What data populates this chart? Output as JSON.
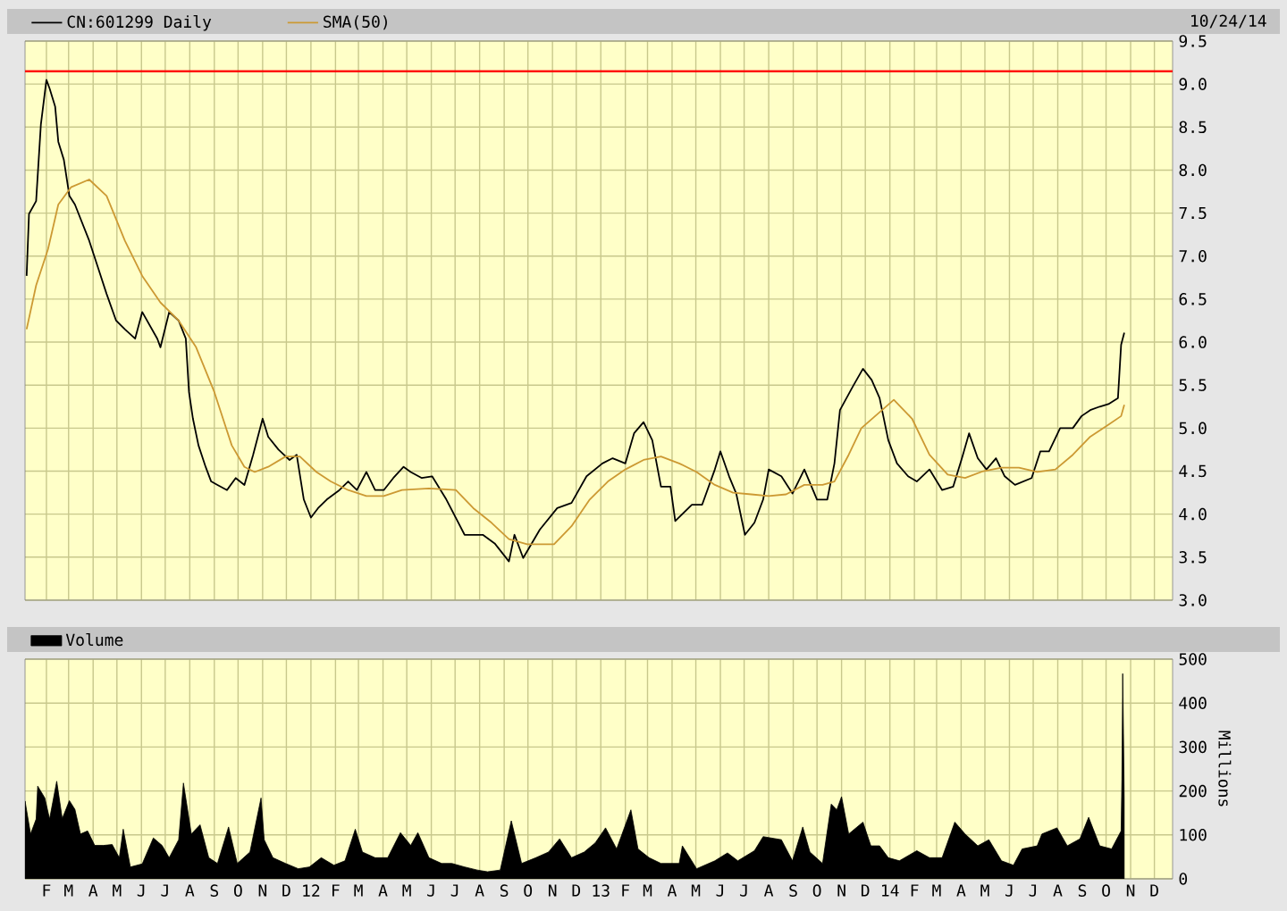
{
  "chart_data": [
    {
      "type": "line",
      "grid": true,
      "legend": "top left",
      "tick_labels": "y",
      "annotations": [
        "10/24/14"
      ],
      "xlim": [
        "2011-01-05",
        "2014-12-24"
      ],
      "xticks": [
        {
          "value": "2011-02-01",
          "label": null
        },
        {
          "value": "2011-03-01",
          "label": null
        },
        {
          "value": "2011-04-01",
          "label": null
        },
        {
          "value": "2011-05-01",
          "label": null
        },
        {
          "value": "2011-06-01",
          "label": null
        },
        {
          "value": "2011-07-01",
          "label": null
        },
        {
          "value": "2011-08-01",
          "label": null
        },
        {
          "value": "2011-09-01",
          "label": null
        },
        {
          "value": "2011-10-01",
          "label": null
        },
        {
          "value": "2011-11-01",
          "label": null
        },
        {
          "value": "2011-12-01",
          "label": null
        },
        {
          "value": "2012-01-01",
          "label": null
        },
        {
          "value": "2012-02-01",
          "label": null
        },
        {
          "value": "2012-03-01",
          "label": null
        },
        {
          "value": "2012-04-01",
          "label": null
        },
        {
          "value": "2012-05-01",
          "label": null
        },
        {
          "value": "2012-06-01",
          "label": null
        },
        {
          "value": "2012-07-01",
          "label": null
        },
        {
          "value": "2012-08-01",
          "label": null
        },
        {
          "value": "2012-09-01",
          "label": null
        },
        {
          "value": "2012-10-01",
          "label": null
        },
        {
          "value": "2012-11-01",
          "label": null
        },
        {
          "value": "2012-12-01",
          "label": null
        },
        {
          "value": "2013-01-01",
          "label": null
        },
        {
          "value": "2013-02-01",
          "label": null
        },
        {
          "value": "2013-03-01",
          "label": null
        },
        {
          "value": "2013-04-01",
          "label": null
        },
        {
          "value": "2013-05-01",
          "label": null
        },
        {
          "value": "2013-06-01",
          "label": null
        },
        {
          "value": "2013-07-01",
          "label": null
        },
        {
          "value": "2013-08-01",
          "label": null
        },
        {
          "value": "2013-09-01",
          "label": null
        },
        {
          "value": "2013-10-01",
          "label": null
        },
        {
          "value": "2013-11-01",
          "label": null
        },
        {
          "value": "2013-12-01",
          "label": null
        },
        {
          "value": "2014-01-01",
          "label": null
        },
        {
          "value": "2014-02-01",
          "label": null
        },
        {
          "value": "2014-03-01",
          "label": null
        },
        {
          "value": "2014-04-01",
          "label": null
        },
        {
          "value": "2014-05-01",
          "label": null
        },
        {
          "value": "2014-06-01",
          "label": null
        },
        {
          "value": "2014-07-01",
          "label": null
        },
        {
          "value": "2014-08-01",
          "label": null
        },
        {
          "value": "2014-09-01",
          "label": null
        },
        {
          "value": "2014-10-01",
          "label": null
        },
        {
          "value": "2014-11-01",
          "label": null
        },
        {
          "value": "2014-12-01",
          "label": null
        }
      ],
      "ylim": [
        3,
        9.5
      ],
      "yticks": [
        {
          "value": 3,
          "label": "3.0"
        },
        3.5,
        {
          "value": 4,
          "label": "4.0"
        },
        4.5,
        {
          "value": 5,
          "label": "5.0"
        },
        5.5,
        {
          "value": 6,
          "label": "6.0"
        },
        6.5,
        {
          "value": 7,
          "label": "7.0"
        },
        7.5,
        {
          "value": 8,
          "label": "8.0"
        },
        8.5,
        {
          "value": 9,
          "label": "9.0"
        },
        9.5
      ],
      "ref_lines": [
        {
          "axis": "y",
          "value": 9.15,
          "color": "#ff0000"
        }
      ],
      "series": [
        {
          "name": "CN:601299 Daily",
          "color": "#000000",
          "x": [
            "2011-01-07",
            "2011-01-10",
            "2011-01-19",
            "2011-01-25",
            "2011-02-01",
            "2011-02-05",
            "2011-02-12",
            "2011-02-16",
            "2011-02-23",
            "2011-03-02",
            "2011-03-09",
            "2011-03-18",
            "2011-03-27",
            "2011-04-07",
            "2011-04-18",
            "2011-04-30",
            "2011-05-11",
            "2011-05-24",
            "2011-06-02",
            "2011-06-21",
            "2011-06-25",
            "2011-07-06",
            "2011-07-18",
            "2011-07-27",
            "2011-07-31",
            "2011-08-05",
            "2011-08-12",
            "2011-08-21",
            "2011-08-28",
            "2011-09-05",
            "2011-09-17",
            "2011-09-28",
            "2011-10-09",
            "2011-10-20",
            "2011-11-01",
            "2011-11-08",
            "2011-11-21",
            "2011-12-05",
            "2011-12-14",
            "2011-12-23",
            "2012-01-01",
            "2012-01-10",
            "2012-01-21",
            "2012-02-06",
            "2012-02-17",
            "2012-02-28",
            "2012-03-11",
            "2012-03-22",
            "2012-04-02",
            "2012-04-14",
            "2012-04-27",
            "2012-05-06",
            "2012-05-20",
            "2012-06-02",
            "2012-06-20",
            "2012-07-13",
            "2012-08-05",
            "2012-08-20",
            "2012-09-07",
            "2012-09-14",
            "2012-09-25",
            "2012-10-16",
            "2012-11-07",
            "2012-11-25",
            "2012-12-14",
            "2013-01-03",
            "2013-01-16",
            "2013-02-01",
            "2013-02-12",
            "2013-02-24",
            "2013-03-07",
            "2013-03-18",
            "2013-03-30",
            "2013-04-05",
            "2013-04-26",
            "2013-05-09",
            "2013-05-25",
            "2013-06-01",
            "2013-06-12",
            "2013-06-21",
            "2013-07-02",
            "2013-07-14",
            "2013-07-25",
            "2013-08-01",
            "2013-08-17",
            "2013-08-31",
            "2013-09-15",
            "2013-10-01",
            "2013-10-14",
            "2013-10-23",
            "2013-10-30",
            "2013-11-15",
            "2013-11-28",
            "2013-12-09",
            "2013-12-19",
            "2013-12-30",
            "2014-01-10",
            "2014-01-24",
            "2014-02-04",
            "2014-02-20",
            "2014-03-08",
            "2014-03-22",
            "2014-04-02",
            "2014-04-11",
            "2014-04-22",
            "2014-05-03",
            "2014-05-15",
            "2014-05-26",
            "2014-06-08",
            "2014-06-29",
            "2014-07-10",
            "2014-07-21",
            "2014-08-04",
            "2014-08-20",
            "2014-08-31",
            "2014-09-11",
            "2014-09-23",
            "2014-10-04",
            "2014-10-16",
            "2014-10-20",
            "2014-10-24"
          ],
          "values": [
            6.77,
            7.49,
            7.64,
            8.53,
            9.05,
            8.95,
            8.74,
            8.33,
            8.12,
            7.7,
            7.6,
            7.39,
            7.18,
            6.87,
            6.56,
            6.25,
            6.15,
            6.04,
            6.35,
            6.04,
            5.94,
            6.35,
            6.25,
            6.04,
            5.42,
            5.11,
            4.8,
            4.55,
            4.38,
            4.34,
            4.28,
            4.42,
            4.34,
            4.69,
            5.11,
            4.9,
            4.75,
            4.63,
            4.69,
            4.17,
            3.96,
            4.07,
            4.17,
            4.28,
            4.38,
            4.28,
            4.49,
            4.28,
            4.28,
            4.42,
            4.55,
            4.49,
            4.42,
            4.44,
            4.17,
            3.76,
            3.76,
            3.66,
            3.45,
            3.76,
            3.49,
            3.82,
            4.07,
            4.13,
            4.44,
            4.59,
            4.65,
            4.59,
            4.94,
            5.07,
            4.86,
            4.32,
            4.32,
            3.92,
            4.11,
            4.11,
            4.52,
            4.73,
            4.44,
            4.24,
            3.76,
            3.9,
            4.17,
            4.52,
            4.44,
            4.24,
            4.52,
            4.17,
            4.17,
            4.59,
            5.21,
            5.48,
            5.69,
            5.56,
            5.35,
            4.86,
            4.59,
            4.44,
            4.38,
            4.52,
            4.28,
            4.32,
            4.65,
            4.94,
            4.65,
            4.52,
            4.65,
            4.44,
            4.34,
            4.42,
            4.73,
            4.73,
            5.0,
            5.0,
            5.14,
            5.21,
            5.25,
            5.28,
            5.35,
            5.97,
            6.11
          ]
        },
        {
          "name": "SMA(50)",
          "color": "#cc9933",
          "x": [
            "2011-01-07",
            "2011-01-19",
            "2011-02-03",
            "2011-02-16",
            "2011-03-04",
            "2011-03-27",
            "2011-04-18",
            "2011-05-11",
            "2011-06-02",
            "2011-06-25",
            "2011-07-18",
            "2011-08-09",
            "2011-09-01",
            "2011-09-23",
            "2011-10-09",
            "2011-10-22",
            "2011-11-08",
            "2011-11-30",
            "2011-12-18",
            "2012-01-08",
            "2012-01-26",
            "2012-02-17",
            "2012-03-11",
            "2012-04-02",
            "2012-04-25",
            "2012-05-29",
            "2012-07-02",
            "2012-07-24",
            "2012-08-16",
            "2012-09-07",
            "2012-09-30",
            "2012-11-03",
            "2012-11-25",
            "2012-12-18",
            "2013-01-10",
            "2013-02-01",
            "2013-02-24",
            "2013-03-18",
            "2013-04-10",
            "2013-05-02",
            "2013-05-25",
            "2013-06-17",
            "2013-07-10",
            "2013-08-01",
            "2013-08-23",
            "2013-09-15",
            "2013-10-08",
            "2013-10-23",
            "2013-11-10",
            "2013-11-26",
            "2014-01-06",
            "2014-01-29",
            "2014-02-20",
            "2014-03-15",
            "2014-04-06",
            "2014-04-29",
            "2014-05-22",
            "2014-06-13",
            "2014-07-06",
            "2014-07-29",
            "2014-08-20",
            "2014-09-11",
            "2014-10-04",
            "2014-10-20",
            "2014-10-24"
          ],
          "values": [
            6.15,
            6.66,
            7.08,
            7.6,
            7.8,
            7.89,
            7.7,
            7.18,
            6.77,
            6.46,
            6.25,
            5.94,
            5.42,
            4.8,
            4.55,
            4.49,
            4.55,
            4.67,
            4.67,
            4.49,
            4.38,
            4.28,
            4.21,
            4.21,
            4.28,
            4.3,
            4.28,
            4.07,
            3.9,
            3.71,
            3.65,
            3.65,
            3.86,
            4.17,
            4.38,
            4.52,
            4.63,
            4.67,
            4.59,
            4.49,
            4.34,
            4.25,
            4.23,
            4.21,
            4.23,
            4.34,
            4.34,
            4.38,
            4.69,
            5.0,
            5.33,
            5.11,
            4.69,
            4.46,
            4.42,
            4.5,
            4.54,
            4.54,
            4.49,
            4.52,
            4.69,
            4.9,
            5.04,
            5.14,
            5.27
          ]
        }
      ]
    },
    {
      "type": "area",
      "grid": true,
      "legend": "top left",
      "ylabel": "Millions",
      "xlim": [
        "2011-01-05",
        "2014-12-24"
      ],
      "xticks": [
        {
          "value": "2011-02-01",
          "label": "F"
        },
        {
          "value": "2011-03-01",
          "label": "M"
        },
        {
          "value": "2011-04-01",
          "label": "A"
        },
        {
          "value": "2011-05-01",
          "label": "M"
        },
        {
          "value": "2011-06-01",
          "label": "J"
        },
        {
          "value": "2011-07-01",
          "label": "J"
        },
        {
          "value": "2011-08-01",
          "label": "A"
        },
        {
          "value": "2011-09-01",
          "label": "S"
        },
        {
          "value": "2011-10-01",
          "label": "O"
        },
        {
          "value": "2011-11-01",
          "label": "N"
        },
        {
          "value": "2011-12-01",
          "label": "D"
        },
        {
          "value": "2012-01-01",
          "label": "12"
        },
        {
          "value": "2012-02-01",
          "label": "F"
        },
        {
          "value": "2012-03-01",
          "label": "M"
        },
        {
          "value": "2012-04-01",
          "label": "A"
        },
        {
          "value": "2012-05-01",
          "label": "M"
        },
        {
          "value": "2012-06-01",
          "label": "J"
        },
        {
          "value": "2012-07-01",
          "label": "J"
        },
        {
          "value": "2012-08-01",
          "label": "A"
        },
        {
          "value": "2012-09-01",
          "label": "S"
        },
        {
          "value": "2012-10-01",
          "label": "O"
        },
        {
          "value": "2012-11-01",
          "label": "N"
        },
        {
          "value": "2012-12-01",
          "label": "D"
        },
        {
          "value": "2013-01-01",
          "label": "13"
        },
        {
          "value": "2013-02-01",
          "label": "F"
        },
        {
          "value": "2013-03-01",
          "label": "M"
        },
        {
          "value": "2013-04-01",
          "label": "A"
        },
        {
          "value": "2013-05-01",
          "label": "M"
        },
        {
          "value": "2013-06-01",
          "label": "J"
        },
        {
          "value": "2013-07-01",
          "label": "J"
        },
        {
          "value": "2013-08-01",
          "label": "A"
        },
        {
          "value": "2013-09-01",
          "label": "S"
        },
        {
          "value": "2013-10-01",
          "label": "O"
        },
        {
          "value": "2013-11-01",
          "label": "N"
        },
        {
          "value": "2013-12-01",
          "label": "D"
        },
        {
          "value": "2014-01-01",
          "label": "14"
        },
        {
          "value": "2014-02-01",
          "label": "F"
        },
        {
          "value": "2014-03-01",
          "label": "M"
        },
        {
          "value": "2014-04-01",
          "label": "A"
        },
        {
          "value": "2014-05-01",
          "label": "M"
        },
        {
          "value": "2014-06-01",
          "label": "J"
        },
        {
          "value": "2014-07-01",
          "label": "J"
        },
        {
          "value": "2014-08-01",
          "label": "A"
        },
        {
          "value": "2014-09-01",
          "label": "S"
        },
        {
          "value": "2014-10-01",
          "label": "O"
        },
        {
          "value": "2014-11-01",
          "label": "N"
        },
        {
          "value": "2014-12-01",
          "label": "D"
        }
      ],
      "ylim": [
        0,
        500
      ],
      "yticks": [
        0,
        100,
        200,
        300,
        400,
        500
      ],
      "series": [
        {
          "name": "Volume",
          "color": "#000000",
          "x": [
            "2011-01-05",
            "2011-01-12",
            "2011-01-19",
            "2011-01-21",
            "2011-01-30",
            "2011-02-05",
            "2011-02-14",
            "2011-02-21",
            "2011-03-02",
            "2011-03-09",
            "2011-03-16",
            "2011-03-25",
            "2011-04-03",
            "2011-04-14",
            "2011-04-25",
            "2011-05-04",
            "2011-05-09",
            "2011-05-18",
            "2011-06-02",
            "2011-06-16",
            "2011-06-27",
            "2011-07-06",
            "2011-07-18",
            "2011-07-24",
            "2011-08-03",
            "2011-08-14",
            "2011-08-25",
            "2011-09-05",
            "2011-09-19",
            "2011-09-30",
            "2011-10-16",
            "2011-10-30",
            "2011-11-03",
            "2011-11-14",
            "2011-11-30",
            "2011-12-16",
            "2011-12-30",
            "2012-01-14",
            "2012-01-30",
            "2012-02-13",
            "2012-02-26",
            "2012-03-06",
            "2012-03-22",
            "2012-04-07",
            "2012-04-23",
            "2012-05-06",
            "2012-05-15",
            "2012-05-29",
            "2012-06-14",
            "2012-06-27",
            "2012-07-13",
            "2012-07-29",
            "2012-08-11",
            "2012-08-27",
            "2012-09-10",
            "2012-09-23",
            "2012-10-11",
            "2012-10-27",
            "2012-11-10",
            "2012-11-25",
            "2012-12-11",
            "2012-12-25",
            "2013-01-07",
            "2013-01-21",
            "2013-02-08",
            "2013-02-17",
            "2013-03-03",
            "2013-03-18",
            "2013-04-10",
            "2013-04-14",
            "2013-05-02",
            "2013-05-25",
            "2013-06-10",
            "2013-06-23",
            "2013-07-14",
            "2013-07-25",
            "2013-08-17",
            "2013-08-31",
            "2013-09-13",
            "2013-09-22",
            "2013-10-08",
            "2013-10-19",
            "2013-10-26",
            "2013-11-01",
            "2013-11-10",
            "2013-11-28",
            "2013-12-08",
            "2013-12-19",
            "2013-12-30",
            "2014-01-13",
            "2014-02-04",
            "2014-02-20",
            "2014-03-08",
            "2014-03-24",
            "2014-04-06",
            "2014-04-22",
            "2014-05-06",
            "2014-05-22",
            "2014-06-06",
            "2014-06-17",
            "2014-07-06",
            "2014-07-12",
            "2014-07-31",
            "2014-08-13",
            "2014-08-29",
            "2014-09-09",
            "2014-09-23",
            "2014-10-08",
            "2014-10-20",
            "2014-10-21",
            "2014-10-22",
            "2014-10-24"
          ],
          "values": [
            177,
            102,
            136,
            211,
            184,
            136,
            222,
            137,
            178,
            158,
            102,
            109,
            76,
            76,
            78,
            48,
            113,
            27,
            34,
            93,
            76,
            48,
            89,
            218,
            102,
            123,
            48,
            35,
            118,
            35,
            61,
            184,
            89,
            48,
            35,
            23,
            27,
            48,
            31,
            41,
            113,
            61,
            48,
            48,
            105,
            76,
            105,
            48,
            35,
            35,
            27,
            20,
            16,
            20,
            132,
            35,
            48,
            61,
            91,
            48,
            61,
            82,
            116,
            68,
            157,
            68,
            48,
            35,
            35,
            75,
            23,
            41,
            59,
            41,
            64,
            96,
            89,
            41,
            118,
            61,
            35,
            170,
            157,
            187,
            102,
            129,
            75,
            75,
            48,
            41,
            64,
            48,
            48,
            129,
            102,
            75,
            89,
            41,
            31,
            68,
            75,
            102,
            116,
            75,
            91,
            140,
            75,
            68,
            109,
            227,
            467,
            184
          ]
        }
      ]
    }
  ]
}
